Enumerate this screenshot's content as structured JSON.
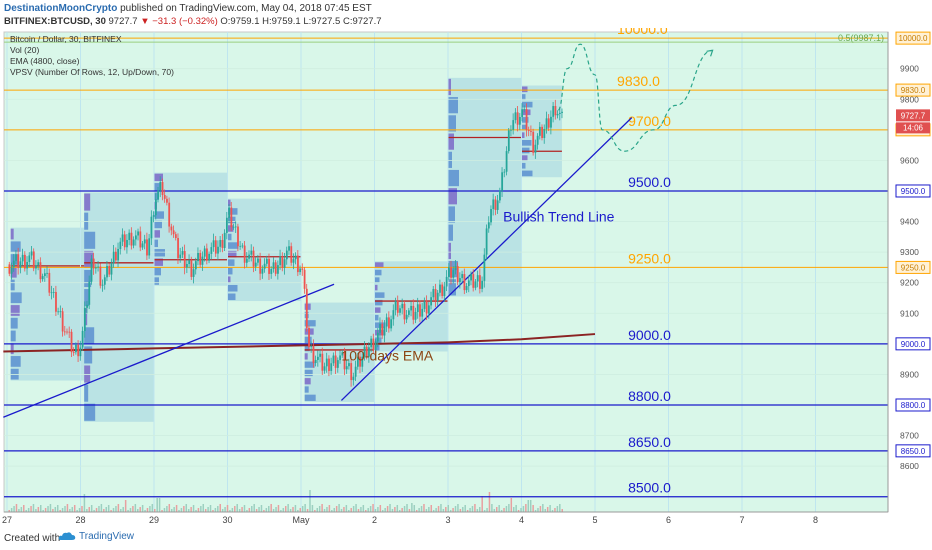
{
  "header": {
    "author": "DestinationMoonCrypto",
    "published": "published on TradingView.com, May 04, 2018 07:45 EST",
    "symbol": "BITFINEX:BTCUSD, 30",
    "last": "9727.7",
    "change": "▼ −31.3 (−0.32%)",
    "o": "O:9759.1",
    "h": "H:9759.1",
    "l": "L:9727.5",
    "c": "C:9727.7"
  },
  "legend": [
    "Bitcoin / Dollar, 30, BITFINEX",
    "Vol (20)",
    "EMA (4800, close)",
    "VPSV (Number Of Rows, 12, Up/Down, 70)"
  ],
  "footer": {
    "created": "Created with",
    "brand": "TradingView"
  },
  "colors": {
    "background": "#d9f7e9",
    "levelBlue": "#1a1acc",
    "levelOrange": "#ffa500",
    "candleUp": "#26a69a",
    "candleDown": "#ef5350",
    "ema": "#8b2323",
    "trendline": "#1a1acc",
    "vpBox": "#a9d8e2"
  },
  "chart_data": {
    "type": "candlestick",
    "title": "Bitcoin / Dollar, 30, BITFINEX",
    "ylim": [
      8450,
      10020
    ],
    "yticks": [
      8600,
      8700,
      8800,
      8900,
      9000,
      9100,
      9200,
      9300,
      9400,
      9500,
      9600,
      9700,
      9800,
      9900,
      10000
    ],
    "xtick_labels": [
      {
        "label": "27",
        "pos": 0.0
      },
      {
        "label": "28",
        "pos": 1.0
      },
      {
        "label": "29",
        "pos": 2.0
      },
      {
        "label": "30",
        "pos": 3.0
      },
      {
        "label": "May",
        "pos": 4.0
      },
      {
        "label": "2",
        "pos": 5.0
      },
      {
        "label": "3",
        "pos": 6.0
      },
      {
        "label": "4",
        "pos": 7.0
      },
      {
        "label": "5",
        "pos": 8.0
      },
      {
        "label": "6",
        "pos": 9.0
      },
      {
        "label": "7",
        "pos": 10.0
      },
      {
        "label": "8",
        "pos": 11.0
      }
    ],
    "levels": [
      {
        "value": 10000,
        "label": "10000.0",
        "color": "orange",
        "axis_label": "10000.0"
      },
      {
        "value": 9830,
        "label": "9830.0",
        "color": "orange",
        "axis_label": "9830.0"
      },
      {
        "value": 9700,
        "label": "9700.0",
        "color": "orange",
        "axis_label": "9700.0"
      },
      {
        "value": 9500,
        "label": "9500.0",
        "color": "blue",
        "axis_label": "9500.0"
      },
      {
        "value": 9250,
        "label": "9250.0",
        "color": "orange",
        "axis_label": "9250.0"
      },
      {
        "value": 9000,
        "label": "9000.0",
        "color": "blue",
        "axis_label": "9000.0"
      },
      {
        "value": 8800,
        "label": "8800.0",
        "color": "blue",
        "axis_label": "8800.0"
      },
      {
        "value": 8650,
        "label": "8650.0",
        "color": "blue",
        "axis_label": "8650.0"
      },
      {
        "value": 8500,
        "label": "8500.0",
        "color": "blue",
        "axis_label": null
      }
    ],
    "fib_label": "0.5(9987.1)",
    "price_label": "9727.7",
    "timer_label": "14:06",
    "annotations": [
      {
        "text": "Bullish Trend Line",
        "x": 6.75,
        "y": 9400,
        "color": "blue"
      },
      {
        "text": "100-days EMA",
        "x": 4.55,
        "y": 8945,
        "color": "brown"
      }
    ],
    "trendlines": [
      {
        "x1": -0.05,
        "y1": 8760,
        "x2": 4.45,
        "y2": 9195,
        "color": "blue"
      },
      {
        "x1": 4.55,
        "y1": 8815,
        "x2": 8.5,
        "y2": 9740,
        "color": "blue"
      }
    ],
    "ema": [
      {
        "x": -0.05,
        "y": 8975
      },
      {
        "x": 2.0,
        "y": 8985
      },
      {
        "x": 4.0,
        "y": 8995
      },
      {
        "x": 6.0,
        "y": 9005
      },
      {
        "x": 7.0,
        "y": 9015
      },
      {
        "x": 8.0,
        "y": 9032
      }
    ],
    "forecast_path": [
      {
        "x": 7.5,
        "y": 9765
      },
      {
        "x": 7.62,
        "y": 9900
      },
      {
        "x": 7.8,
        "y": 9980
      },
      {
        "x": 8.0,
        "y": 9880
      },
      {
        "x": 8.1,
        "y": 9700
      },
      {
        "x": 8.4,
        "y": 9630
      },
      {
        "x": 8.8,
        "y": 9700
      },
      {
        "x": 9.1,
        "y": 9780
      },
      {
        "x": 9.6,
        "y": 9960
      }
    ],
    "vp_boxes": [
      {
        "x0": 0.05,
        "x1": 1.05,
        "y0": 8880,
        "y1": 9380
      },
      {
        "x0": 1.05,
        "x1": 2.0,
        "y0": 8745,
        "y1": 9495
      },
      {
        "x0": 2.0,
        "x1": 3.0,
        "y0": 9190,
        "y1": 9560
      },
      {
        "x0": 3.0,
        "x1": 4.0,
        "y0": 9140,
        "y1": 9475
      },
      {
        "x0": 4.05,
        "x1": 5.0,
        "y0": 8810,
        "y1": 9135
      },
      {
        "x0": 5.0,
        "x1": 6.0,
        "y0": 8975,
        "y1": 9270
      },
      {
        "x0": 6.0,
        "x1": 7.0,
        "y0": 9155,
        "y1": 9870
      },
      {
        "x0": 7.0,
        "x1": 7.55,
        "y0": 9545,
        "y1": 9845
      }
    ],
    "vp_poc": [
      {
        "x0": 0.05,
        "x1": 1.05,
        "y": 9255
      },
      {
        "x0": 1.05,
        "x1": 2.0,
        "y": 9265
      },
      {
        "x0": 2.0,
        "x1": 3.0,
        "y": 9275
      },
      {
        "x0": 3.0,
        "x1": 4.0,
        "y": 9285
      },
      {
        "x0": 4.05,
        "x1": 5.0,
        "y": 8980
      },
      {
        "x0": 5.0,
        "x1": 6.0,
        "y": 9140
      },
      {
        "x0": 6.0,
        "x1": 7.0,
        "y": 9675
      },
      {
        "x0": 7.0,
        "x1": 7.55,
        "y": 9630
      }
    ],
    "price_path": [
      {
        "x": 0.0,
        "y": 9260
      },
      {
        "x": 0.3,
        "y": 9280
      },
      {
        "x": 0.5,
        "y": 9220
      },
      {
        "x": 0.7,
        "y": 9100
      },
      {
        "x": 0.9,
        "y": 8970
      },
      {
        "x": 1.0,
        "y": 9000
      },
      {
        "x": 1.15,
        "y": 9280
      },
      {
        "x": 1.3,
        "y": 9200
      },
      {
        "x": 1.5,
        "y": 9320
      },
      {
        "x": 1.7,
        "y": 9350
      },
      {
        "x": 1.9,
        "y": 9310
      },
      {
        "x": 2.0,
        "y": 9480
      },
      {
        "x": 2.1,
        "y": 9510
      },
      {
        "x": 2.3,
        "y": 9300
      },
      {
        "x": 2.5,
        "y": 9250
      },
      {
        "x": 2.7,
        "y": 9300
      },
      {
        "x": 2.9,
        "y": 9320
      },
      {
        "x": 3.0,
        "y": 9420
      },
      {
        "x": 3.2,
        "y": 9300
      },
      {
        "x": 3.4,
        "y": 9260
      },
      {
        "x": 3.6,
        "y": 9240
      },
      {
        "x": 3.8,
        "y": 9300
      },
      {
        "x": 4.0,
        "y": 9250
      },
      {
        "x": 4.1,
        "y": 8980
      },
      {
        "x": 4.3,
        "y": 8920
      },
      {
        "x": 4.5,
        "y": 8960
      },
      {
        "x": 4.7,
        "y": 8900
      },
      {
        "x": 4.9,
        "y": 8990
      },
      {
        "x": 5.1,
        "y": 9050
      },
      {
        "x": 5.3,
        "y": 9120
      },
      {
        "x": 5.5,
        "y": 9090
      },
      {
        "x": 5.7,
        "y": 9130
      },
      {
        "x": 5.9,
        "y": 9180
      },
      {
        "x": 6.05,
        "y": 9240
      },
      {
        "x": 6.25,
        "y": 9200
      },
      {
        "x": 6.45,
        "y": 9210
      },
      {
        "x": 6.55,
        "y": 9430
      },
      {
        "x": 6.7,
        "y": 9490
      },
      {
        "x": 6.85,
        "y": 9730
      },
      {
        "x": 7.0,
        "y": 9760
      },
      {
        "x": 7.15,
        "y": 9650
      },
      {
        "x": 7.3,
        "y": 9700
      },
      {
        "x": 7.45,
        "y": 9780
      },
      {
        "x": 7.55,
        "y": 9728
      }
    ],
    "volume_spikes": [
      {
        "x": 1.05,
        "v": 18
      },
      {
        "x": 1.6,
        "v": 12
      },
      {
        "x": 2.05,
        "v": 14
      },
      {
        "x": 4.1,
        "v": 22
      },
      {
        "x": 5.5,
        "v": 9
      },
      {
        "x": 6.45,
        "v": 16
      },
      {
        "x": 6.55,
        "v": 20
      },
      {
        "x": 6.85,
        "v": 14
      },
      {
        "x": 7.1,
        "v": 12
      }
    ]
  }
}
